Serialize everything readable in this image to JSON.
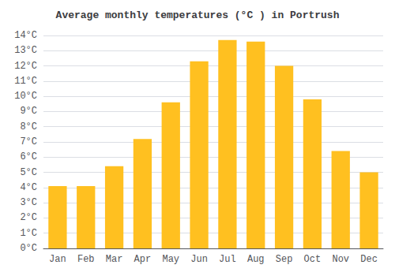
{
  "chart_data": {
    "type": "bar",
    "title": "Average monthly temperatures (°C ) in Portrush",
    "categories": [
      "Jan",
      "Feb",
      "Mar",
      "Apr",
      "May",
      "Jun",
      "Jul",
      "Aug",
      "Sep",
      "Oct",
      "Nov",
      "Dec"
    ],
    "values": [
      4.1,
      4.1,
      5.4,
      7.2,
      9.6,
      12.3,
      13.7,
      13.6,
      12.0,
      9.8,
      6.4,
      5.0
    ],
    "color": "#FFC020",
    "ylim": [
      0,
      14
    ],
    "yticks": [
      {
        "value": 0,
        "label": "0°C"
      },
      {
        "value": 1,
        "label": "1°C"
      },
      {
        "value": 2,
        "label": "2°C"
      },
      {
        "value": 3,
        "label": "3°C"
      },
      {
        "value": 4,
        "label": "4°C"
      },
      {
        "value": 5,
        "label": "5°C"
      },
      {
        "value": 6,
        "label": "6°C"
      },
      {
        "value": 7,
        "label": "7°C"
      },
      {
        "value": 8,
        "label": "8°C"
      },
      {
        "value": 9,
        "label": "9°C"
      },
      {
        "value": 10,
        "label": "10°C"
      },
      {
        "value": 11,
        "label": "11°C"
      },
      {
        "value": 12,
        "label": "12°C"
      },
      {
        "value": 13,
        "label": "13°C"
      },
      {
        "value": 14,
        "label": "14°C"
      }
    ],
    "grid": true
  }
}
